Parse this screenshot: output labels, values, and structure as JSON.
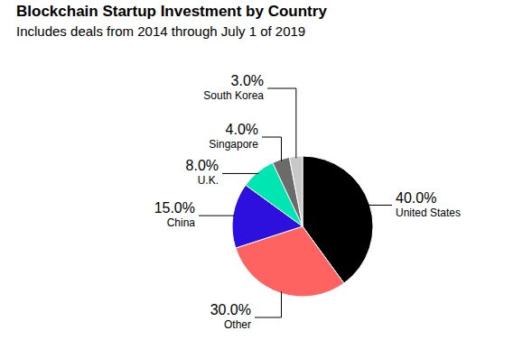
{
  "chart_data": {
    "type": "pie",
    "title": "Blockchain Startup Investment by Country",
    "subtitle": "Includes deals from 2014 through July 1 of 2019",
    "categories": [
      "United States",
      "Other",
      "China",
      "U.K.",
      "Singapore",
      "South Korea"
    ],
    "values": [
      40,
      30,
      15,
      8,
      4,
      3
    ],
    "value_labels": [
      "40.0%",
      "30.0%",
      "15.0%",
      "8.0%",
      "4.0%",
      "3.0%"
    ],
    "colors": [
      "#000000",
      "#ff6361",
      "#2d0fde",
      "#00e6b3",
      "#6b6b6b",
      "#c8c8c8"
    ],
    "data_labels": true
  }
}
